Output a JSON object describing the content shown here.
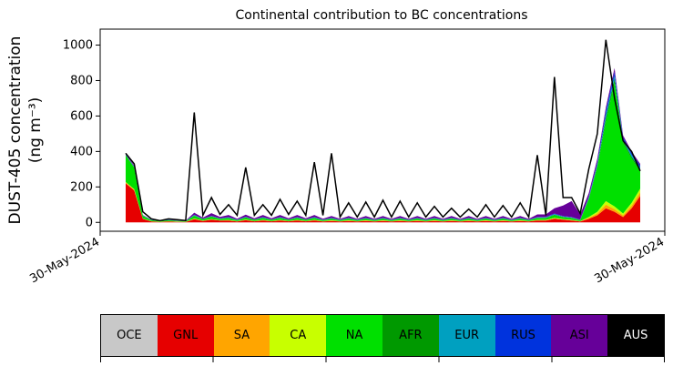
{
  "chart_data": {
    "type": "area",
    "title": "Continental contribution to BC concentrations",
    "xlabel": "",
    "ylabel_line1": "DUST-405 concentration",
    "ylabel_line2": "(ng m⁻³)",
    "ylim": [
      -50,
      1090
    ],
    "yticks": [
      0,
      200,
      400,
      600,
      800,
      1000
    ],
    "xtick_labels": [
      "30-May-2024",
      "30-May-2024"
    ],
    "grid": false,
    "stacked": true,
    "x": [
      0,
      1,
      2,
      3,
      4,
      5,
      6,
      7,
      8,
      9,
      10,
      11,
      12,
      13,
      14,
      15,
      16,
      17,
      18,
      19,
      20,
      21,
      22,
      23,
      24,
      25,
      26,
      27,
      28,
      29,
      30,
      31,
      32,
      33,
      34,
      35,
      36,
      37,
      38,
      39,
      40,
      41,
      42,
      43,
      44,
      45,
      46,
      47,
      48,
      49,
      50,
      51,
      52,
      53,
      54,
      55,
      56,
      57,
      58,
      59,
      60
    ],
    "series": [
      {
        "name": "GNL",
        "color": "#e60000",
        "values": [
          220,
          180,
          20,
          5,
          2,
          5,
          3,
          2,
          18,
          8,
          15,
          10,
          10,
          5,
          12,
          6,
          10,
          6,
          10,
          6,
          10,
          6,
          10,
          5,
          8,
          5,
          8,
          5,
          8,
          5,
          8,
          5,
          8,
          5,
          8,
          5,
          8,
          5,
          8,
          5,
          8,
          5,
          8,
          5,
          8,
          5,
          8,
          5,
          10,
          10,
          20,
          15,
          10,
          5,
          20,
          40,
          80,
          60,
          30,
          80,
          150
        ]
      },
      {
        "name": "SA",
        "color": "#ffa500",
        "values": [
          5,
          5,
          1,
          1,
          1,
          1,
          1,
          1,
          2,
          1,
          2,
          1,
          2,
          1,
          2,
          1,
          2,
          1,
          2,
          1,
          2,
          1,
          2,
          1,
          2,
          1,
          2,
          1,
          2,
          1,
          2,
          1,
          2,
          1,
          2,
          1,
          2,
          1,
          2,
          1,
          2,
          1,
          2,
          1,
          2,
          1,
          2,
          1,
          2,
          2,
          3,
          2,
          2,
          1,
          5,
          10,
          20,
          15,
          10,
          15,
          20
        ]
      },
      {
        "name": "CA",
        "color": "#c8ff00",
        "values": [
          3,
          3,
          1,
          1,
          1,
          1,
          1,
          1,
          2,
          1,
          2,
          1,
          2,
          1,
          2,
          1,
          2,
          1,
          2,
          1,
          2,
          1,
          2,
          1,
          2,
          1,
          2,
          1,
          2,
          1,
          2,
          1,
          2,
          1,
          2,
          1,
          2,
          1,
          2,
          1,
          2,
          1,
          2,
          1,
          2,
          1,
          2,
          1,
          2,
          2,
          3,
          2,
          2,
          1,
          5,
          10,
          20,
          15,
          10,
          15,
          20
        ]
      },
      {
        "name": "NA",
        "color": "#00e000",
        "values": [
          150,
          120,
          15,
          5,
          3,
          5,
          3,
          2,
          15,
          8,
          12,
          8,
          10,
          5,
          10,
          6,
          10,
          6,
          10,
          6,
          10,
          6,
          10,
          5,
          8,
          5,
          8,
          5,
          8,
          5,
          8,
          5,
          8,
          5,
          8,
          5,
          8,
          5,
          8,
          5,
          8,
          5,
          8,
          5,
          8,
          5,
          8,
          5,
          10,
          10,
          15,
          10,
          10,
          5,
          100,
          250,
          450,
          700,
          400,
          250,
          100
        ]
      },
      {
        "name": "AFR",
        "color": "#009900",
        "values": [
          3,
          3,
          1,
          1,
          1,
          1,
          1,
          1,
          2,
          1,
          2,
          1,
          2,
          1,
          2,
          1,
          2,
          1,
          2,
          1,
          2,
          1,
          2,
          1,
          2,
          1,
          2,
          1,
          2,
          1,
          2,
          1,
          2,
          1,
          2,
          1,
          2,
          1,
          2,
          1,
          2,
          1,
          2,
          1,
          2,
          1,
          2,
          1,
          2,
          2,
          3,
          2,
          2,
          1,
          5,
          10,
          20,
          20,
          10,
          10,
          10
        ]
      },
      {
        "name": "EUR",
        "color": "#00a0c0",
        "values": [
          2,
          2,
          1,
          1,
          1,
          1,
          1,
          1,
          2,
          1,
          2,
          1,
          2,
          1,
          2,
          1,
          2,
          1,
          2,
          1,
          2,
          1,
          2,
          1,
          2,
          1,
          2,
          1,
          2,
          1,
          2,
          1,
          2,
          1,
          2,
          1,
          2,
          1,
          2,
          1,
          2,
          1,
          2,
          1,
          2,
          1,
          2,
          1,
          2,
          2,
          3,
          2,
          2,
          1,
          5,
          10,
          20,
          20,
          10,
          10,
          10
        ]
      },
      {
        "name": "RUS",
        "color": "#0033dd",
        "values": [
          2,
          2,
          1,
          1,
          1,
          1,
          1,
          1,
          2,
          1,
          2,
          1,
          2,
          1,
          2,
          1,
          2,
          1,
          2,
          1,
          2,
          1,
          2,
          1,
          2,
          1,
          2,
          1,
          2,
          1,
          2,
          1,
          2,
          1,
          2,
          1,
          2,
          1,
          2,
          1,
          2,
          1,
          2,
          1,
          2,
          1,
          2,
          1,
          2,
          2,
          3,
          2,
          2,
          1,
          5,
          10,
          20,
          20,
          10,
          10,
          10
        ]
      },
      {
        "name": "ASI",
        "color": "#660099",
        "values": [
          5,
          5,
          2,
          1,
          1,
          2,
          2,
          1,
          12,
          6,
          15,
          8,
          12,
          6,
          12,
          6,
          12,
          6,
          12,
          6,
          12,
          6,
          12,
          6,
          10,
          5,
          10,
          5,
          10,
          5,
          10,
          5,
          10,
          5,
          10,
          5,
          10,
          5,
          10,
          5,
          10,
          5,
          10,
          5,
          10,
          5,
          10,
          5,
          15,
          15,
          30,
          60,
          90,
          30,
          20,
          20,
          20,
          20,
          10,
          10,
          10
        ]
      }
    ],
    "total_line": {
      "name": "AUS",
      "color": "#000000",
      "values": [
        390,
        330,
        60,
        20,
        10,
        20,
        15,
        10,
        620,
        40,
        140,
        45,
        100,
        40,
        310,
        40,
        100,
        40,
        130,
        45,
        120,
        40,
        340,
        40,
        390,
        30,
        110,
        30,
        115,
        30,
        125,
        30,
        120,
        30,
        110,
        30,
        90,
        30,
        80,
        30,
        75,
        30,
        100,
        30,
        95,
        30,
        110,
        30,
        380,
        40,
        820,
        140,
        140,
        50,
        300,
        500,
        1030,
        700,
        460,
        400,
        290
      ]
    },
    "legend": {
      "placement": "bottom",
      "entries": [
        {
          "label": "OCE",
          "color": "#c8c8c8",
          "text_color": "#000000"
        },
        {
          "label": "GNL",
          "color": "#e60000",
          "text_color": "#000000"
        },
        {
          "label": "SA",
          "color": "#ffa500",
          "text_color": "#000000"
        },
        {
          "label": "CA",
          "color": "#c8ff00",
          "text_color": "#000000"
        },
        {
          "label": "NA",
          "color": "#00e000",
          "text_color": "#000000"
        },
        {
          "label": "AFR",
          "color": "#009900",
          "text_color": "#000000"
        },
        {
          "label": "EUR",
          "color": "#00a0c0",
          "text_color": "#000000"
        },
        {
          "label": "RUS",
          "color": "#0033dd",
          "text_color": "#000000"
        },
        {
          "label": "ASI",
          "color": "#660099",
          "text_color": "#000000"
        },
        {
          "label": "AUS",
          "color": "#000000",
          "text_color": "#ffffff"
        }
      ]
    }
  }
}
